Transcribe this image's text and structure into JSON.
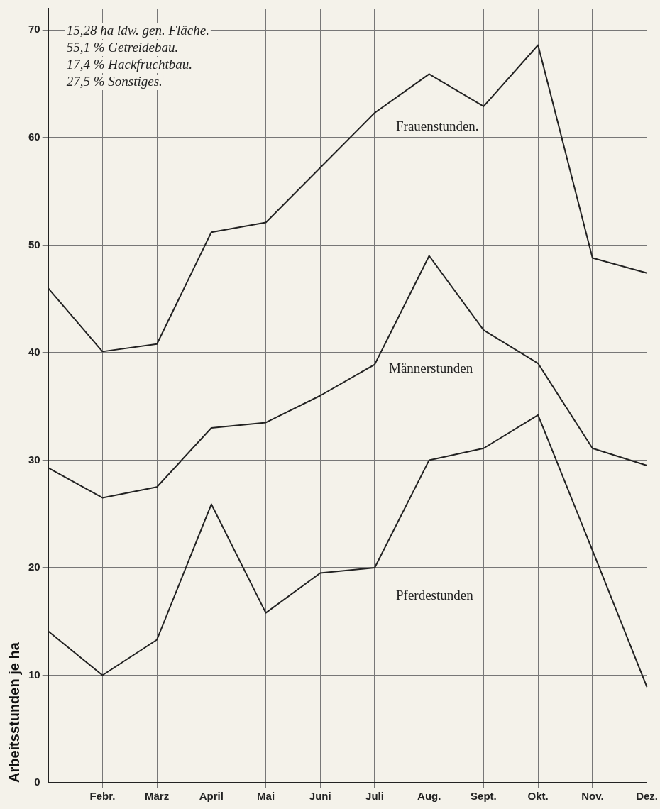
{
  "chart_data": {
    "type": "line",
    "ylabel": "Arbeitsstunden je ha",
    "categories": [
      null,
      "Febr.",
      "März",
      "April",
      "Mai",
      "Juni",
      "Juli",
      "Aug.",
      "Sept.",
      "Okt.",
      "Nov.",
      "Dez."
    ],
    "series": [
      {
        "name": "Frauenstunden.",
        "color": "#222222",
        "values": [
          46.0,
          40.1,
          40.8,
          51.2,
          52.1,
          57.2,
          62.3,
          65.9,
          62.9,
          68.6,
          48.8,
          47.4
        ]
      },
      {
        "name": "Männerstunden",
        "color": "#222222",
        "values": [
          29.3,
          26.5,
          27.5,
          33.0,
          33.5,
          36.0,
          38.9,
          49.0,
          42.1,
          39.0,
          31.1,
          29.5
        ]
      },
      {
        "name": "Pferdestunden",
        "color": "#222222",
        "values": [
          14.1,
          10.0,
          13.3,
          25.9,
          15.8,
          19.5,
          20.0,
          30.0,
          31.1,
          34.2,
          21.6,
          8.9
        ]
      }
    ],
    "ylim": [
      0,
      72
    ],
    "yticks": [
      0,
      10,
      20,
      30,
      40,
      50,
      60,
      70
    ],
    "grid": true,
    "legend": false,
    "marker": "none",
    "line_style": "solid",
    "annotations": [
      "15,28 ha ldw. gen. Fläche.",
      "55,1 % Getreidebau.",
      "17,4 % Hackfruchtbau.",
      "27,5 % Sonstiges."
    ]
  }
}
